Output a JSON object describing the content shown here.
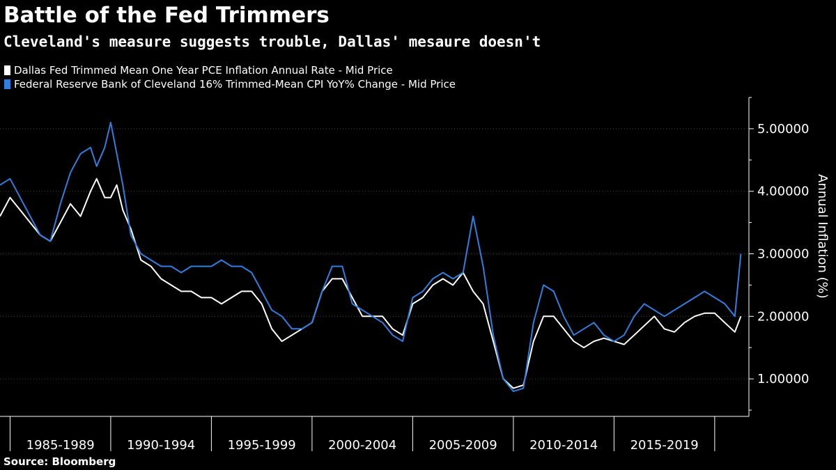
{
  "title": "Battle of the Fed Trimmers",
  "subtitle": "Cleveland's measure suggests trouble, Dallas' mesaure doesn't",
  "source": "Source: Bloomberg",
  "colors": {
    "background": "#000000",
    "dallas": "#ffffff",
    "cleveland": "#2f7fe0",
    "grid": "#444444"
  },
  "chart_data": {
    "type": "line",
    "title": "Battle of the Fed Trimmers",
    "subtitle": "Cleveland's measure suggests trouble, Dallas' mesaure doesn't",
    "ylabel": "Annual Inflation (%)",
    "ylim": [
      0.4,
      5.5
    ],
    "xlim": [
      1984.5,
      2021.7
    ],
    "y_ticks": [
      1.0,
      2.0,
      3.0,
      4.0,
      5.0
    ],
    "y_tick_labels": [
      "1.00000",
      "2.00000",
      "3.00000",
      "4.00000",
      "5.00000"
    ],
    "x_tick_years": [
      1985,
      1990,
      1995,
      2000,
      2005,
      2010,
      2015,
      2020
    ],
    "x_period_labels": [
      {
        "label": "1985-1989",
        "x": 1987.5
      },
      {
        "label": "1990-1994",
        "x": 1992.5
      },
      {
        "label": "1995-1999",
        "x": 1997.5
      },
      {
        "label": "2000-2004",
        "x": 2002.5
      },
      {
        "label": "2005-2009",
        "x": 2007.5
      },
      {
        "label": "2010-2014",
        "x": 2012.5
      },
      {
        "label": "2015-2019",
        "x": 2017.5
      }
    ],
    "grid": true,
    "legend_position": "top-left",
    "series": [
      {
        "name": "Dallas Fed Trimmed Mean One Year PCE Inflation Annual Rate - Mid Price",
        "key": "dallas",
        "x": [
          1984.5,
          1985.0,
          1985.5,
          1986.0,
          1986.5,
          1987.0,
          1987.5,
          1988.0,
          1988.5,
          1989.0,
          1989.3,
          1989.7,
          1990.0,
          1990.3,
          1990.6,
          1991.0,
          1991.5,
          1992.0,
          1992.5,
          1993.0,
          1993.5,
          1994.0,
          1994.5,
          1995.0,
          1995.5,
          1996.0,
          1996.5,
          1997.0,
          1997.5,
          1998.0,
          1998.5,
          1999.0,
          1999.5,
          2000.0,
          2000.5,
          2001.0,
          2001.5,
          2002.0,
          2002.5,
          2003.0,
          2003.5,
          2004.0,
          2004.5,
          2005.0,
          2005.5,
          2006.0,
          2006.5,
          2007.0,
          2007.5,
          2008.0,
          2008.5,
          2009.0,
          2009.5,
          2010.0,
          2010.5,
          2011.0,
          2011.5,
          2012.0,
          2012.5,
          2013.0,
          2013.5,
          2014.0,
          2014.5,
          2015.0,
          2015.5,
          2016.0,
          2016.5,
          2017.0,
          2017.5,
          2018.0,
          2018.5,
          2019.0,
          2019.5,
          2020.0,
          2020.5,
          2021.0,
          2021.3
        ],
        "values": [
          3.6,
          3.9,
          3.7,
          3.5,
          3.3,
          3.2,
          3.5,
          3.8,
          3.6,
          4.0,
          4.2,
          3.9,
          3.9,
          4.1,
          3.7,
          3.4,
          2.9,
          2.8,
          2.6,
          2.5,
          2.4,
          2.4,
          2.3,
          2.3,
          2.2,
          2.3,
          2.4,
          2.4,
          2.2,
          1.8,
          1.6,
          1.7,
          1.8,
          1.9,
          2.4,
          2.6,
          2.6,
          2.3,
          2.0,
          2.0,
          2.0,
          1.8,
          1.7,
          2.2,
          2.3,
          2.5,
          2.6,
          2.5,
          2.7,
          2.4,
          2.2,
          1.6,
          1.0,
          0.85,
          0.9,
          1.6,
          2.0,
          2.0,
          1.8,
          1.6,
          1.5,
          1.6,
          1.65,
          1.6,
          1.55,
          1.7,
          1.85,
          2.0,
          1.8,
          1.75,
          1.9,
          2.0,
          2.05,
          2.05,
          1.9,
          1.75,
          2.0
        ]
      },
      {
        "name": "Federal Reserve Bank of Cleveland 16% Trimmed-Mean CPI YoY% Change - Mid Price",
        "key": "cleveland",
        "x": [
          1984.5,
          1985.0,
          1985.5,
          1986.0,
          1986.5,
          1987.0,
          1987.5,
          1988.0,
          1988.5,
          1989.0,
          1989.3,
          1989.7,
          1990.0,
          1990.3,
          1990.6,
          1991.0,
          1991.5,
          1992.0,
          1992.5,
          1993.0,
          1993.5,
          1994.0,
          1994.5,
          1995.0,
          1995.5,
          1996.0,
          1996.5,
          1997.0,
          1997.5,
          1998.0,
          1998.5,
          1999.0,
          1999.5,
          2000.0,
          2000.5,
          2001.0,
          2001.5,
          2002.0,
          2002.5,
          2003.0,
          2003.5,
          2004.0,
          2004.5,
          2005.0,
          2005.5,
          2006.0,
          2006.5,
          2007.0,
          2007.5,
          2008.0,
          2008.5,
          2009.0,
          2009.5,
          2010.0,
          2010.5,
          2011.0,
          2011.5,
          2012.0,
          2012.5,
          2013.0,
          2013.5,
          2014.0,
          2014.5,
          2015.0,
          2015.5,
          2016.0,
          2016.5,
          2017.0,
          2017.5,
          2018.0,
          2018.5,
          2019.0,
          2019.5,
          2020.0,
          2020.5,
          2021.0,
          2021.3
        ],
        "values": [
          4.1,
          4.2,
          3.9,
          3.6,
          3.3,
          3.2,
          3.8,
          4.3,
          4.6,
          4.7,
          4.4,
          4.7,
          5.1,
          4.6,
          4.1,
          3.3,
          3.0,
          2.9,
          2.8,
          2.8,
          2.7,
          2.8,
          2.8,
          2.8,
          2.9,
          2.8,
          2.8,
          2.7,
          2.4,
          2.1,
          2.0,
          1.8,
          1.8,
          1.9,
          2.4,
          2.8,
          2.8,
          2.2,
          2.1,
          2.0,
          1.9,
          1.7,
          1.6,
          2.3,
          2.4,
          2.6,
          2.7,
          2.6,
          2.7,
          3.6,
          2.8,
          1.7,
          1.0,
          0.8,
          0.85,
          1.9,
          2.5,
          2.4,
          2.0,
          1.7,
          1.8,
          1.9,
          1.7,
          1.6,
          1.7,
          2.0,
          2.2,
          2.1,
          2.0,
          2.1,
          2.2,
          2.3,
          2.4,
          2.3,
          2.2,
          2.0,
          3.0
        ]
      }
    ]
  }
}
